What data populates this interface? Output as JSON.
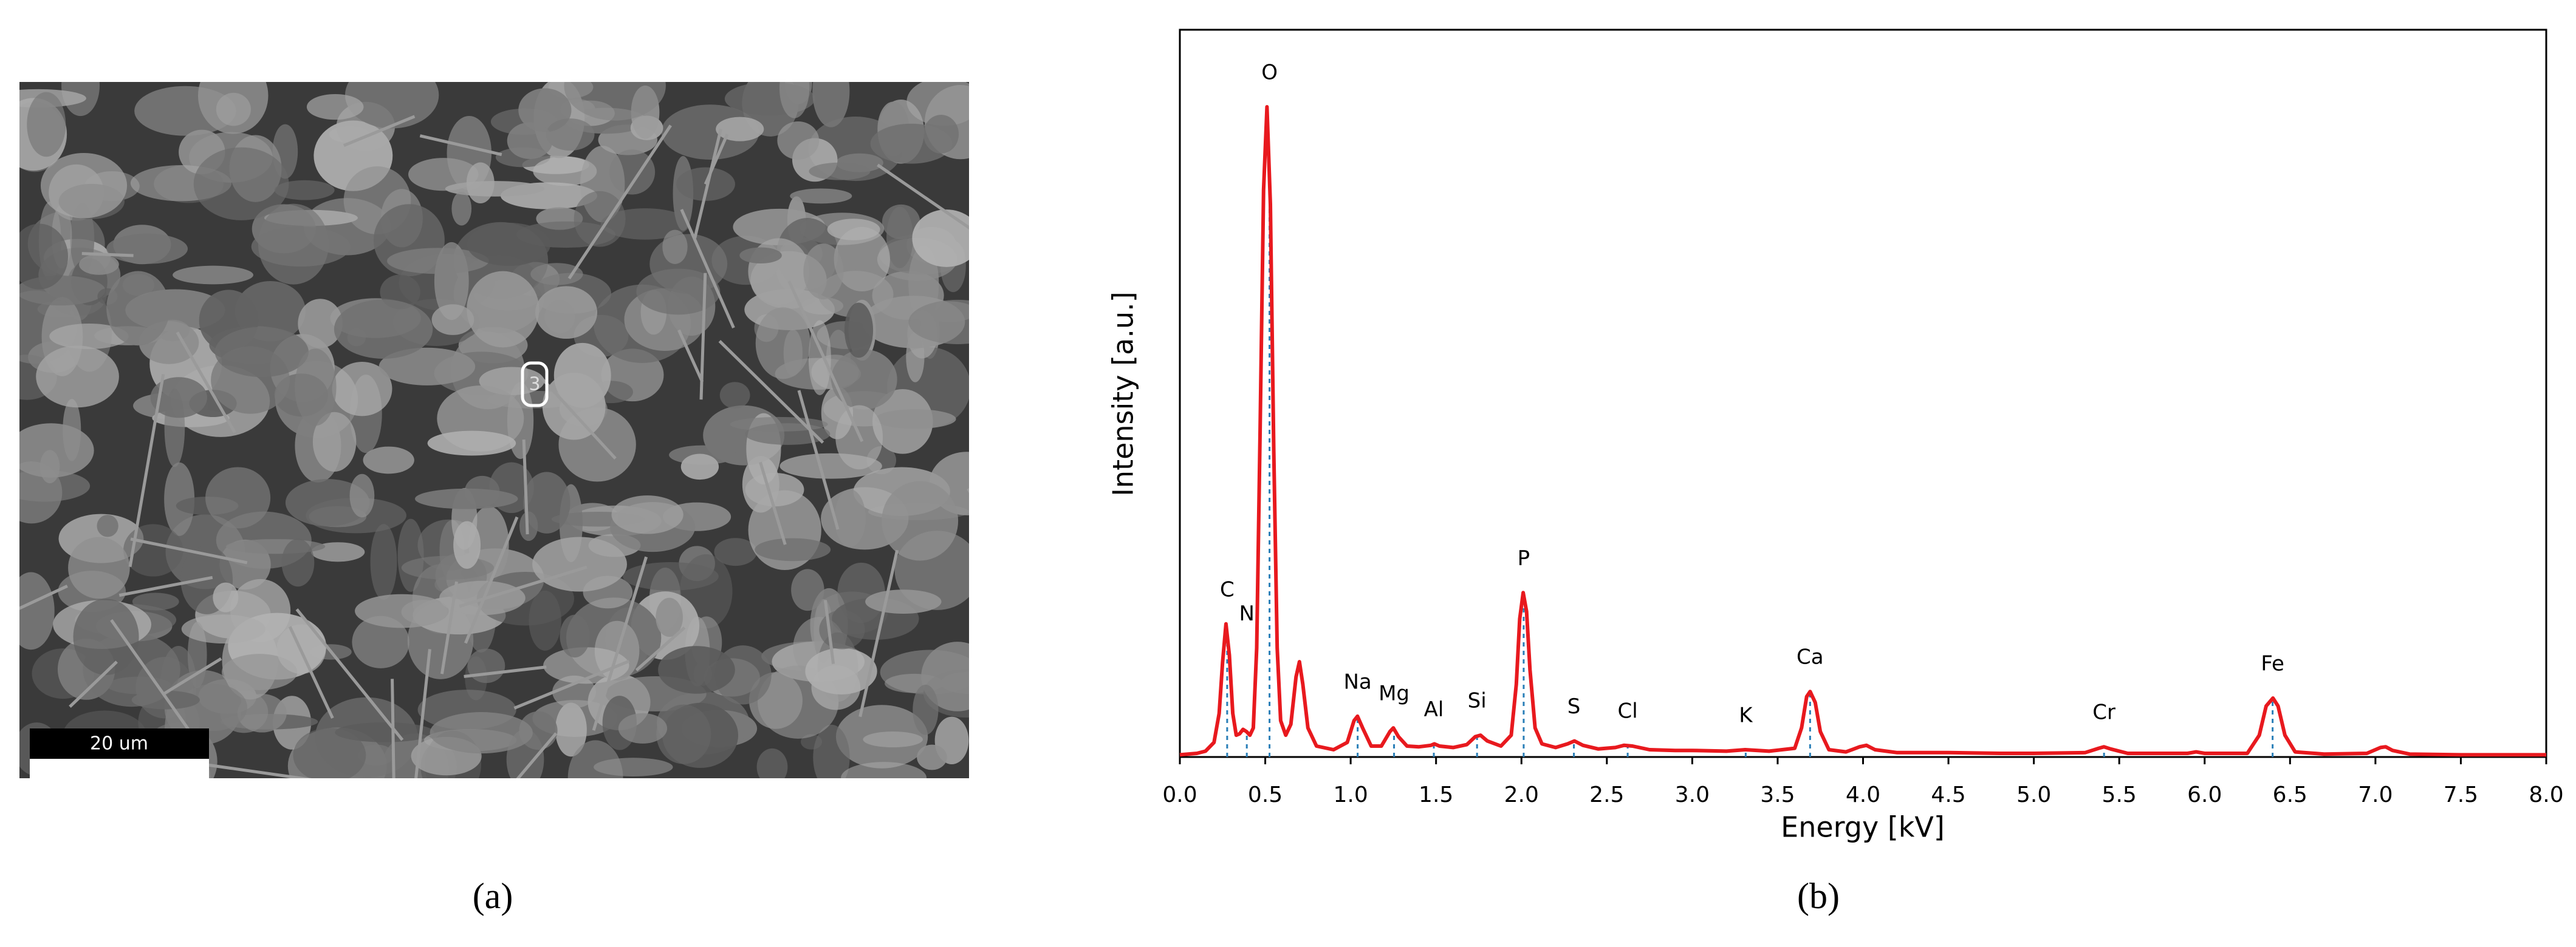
{
  "image": {
    "scale_bar": "20 um",
    "marker": "3",
    "caption": "(a)"
  },
  "chart_data": {
    "type": "line",
    "caption": "(b)",
    "x_label": "Energy [kV]",
    "y_label": "Intensity [a.u.]",
    "color": "#e8191e",
    "peak_line_color": "#2a7fb8",
    "x": [
      0,
      0.1,
      0.15,
      0.2,
      0.23,
      0.25,
      0.27,
      0.29,
      0.31,
      0.33,
      0.35,
      0.37,
      0.39,
      0.41,
      0.43,
      0.45,
      0.47,
      0.49,
      0.51,
      0.53,
      0.55,
      0.57,
      0.59,
      0.62,
      0.65,
      0.68,
      0.7,
      0.72,
      0.75,
      0.8,
      0.9,
      0.98,
      1.02,
      1.04,
      1.07,
      1.12,
      1.18,
      1.23,
      1.25,
      1.28,
      1.33,
      1.4,
      1.47,
      1.49,
      1.52,
      1.6,
      1.68,
      1.73,
      1.76,
      1.8,
      1.88,
      1.94,
      1.97,
      1.99,
      2.01,
      2.03,
      2.05,
      2.08,
      2.12,
      2.2,
      2.27,
      2.31,
      2.36,
      2.45,
      2.55,
      2.6,
      2.65,
      2.75,
      2.9,
      3.0,
      3.2,
      3.31,
      3.45,
      3.6,
      3.64,
      3.67,
      3.69,
      3.72,
      3.75,
      3.8,
      3.9,
      3.98,
      4.02,
      4.07,
      4.2,
      4.5,
      4.8,
      5.0,
      5.3,
      5.38,
      5.41,
      5.45,
      5.55,
      5.9,
      5.95,
      6.0,
      6.25,
      6.32,
      6.36,
      6.4,
      6.43,
      6.47,
      6.53,
      6.7,
      6.95,
      7.03,
      7.06,
      7.1,
      7.2,
      7.5,
      8.0
    ],
    "values": [
      0.3,
      0.5,
      0.8,
      2,
      6,
      13,
      18.3,
      14,
      6,
      3,
      3.2,
      3.8,
      3.5,
      3,
      4,
      15,
      45,
      78,
      89.4,
      76,
      42,
      15,
      5,
      3,
      4.5,
      11,
      13.1,
      10,
      4,
      1.5,
      1,
      2,
      5,
      5.6,
      4,
      1.5,
      1.5,
      3.5,
      4,
      2.8,
      1.5,
      1.4,
      1.6,
      1.8,
      1.5,
      1.3,
      1.7,
      2.8,
      3,
      2.2,
      1.5,
      3,
      10,
      19,
      22.6,
      20,
      12,
      4,
      1.8,
      1.3,
      1.8,
      2.2,
      1.6,
      1.1,
      1.3,
      1.6,
      1.5,
      1,
      0.9,
      0.9,
      0.8,
      1,
      0.8,
      1.2,
      4,
      8.3,
      9,
      7.5,
      3.5,
      1,
      0.7,
      1.4,
      1.6,
      1,
      0.6,
      0.6,
      0.5,
      0.5,
      0.6,
      1.2,
      1.4,
      1.1,
      0.5,
      0.5,
      0.7,
      0.5,
      0.5,
      3,
      7,
      8.1,
      7,
      3,
      0.7,
      0.4,
      0.5,
      1.3,
      1.4,
      0.9,
      0.4,
      0.3,
      0.3
    ],
    "peaks": [
      {
        "label": "C",
        "energy": 0.277
      },
      {
        "label": "N",
        "energy": 0.392
      },
      {
        "label": "O",
        "energy": 0.525
      },
      {
        "label": "Na",
        "energy": 1.041
      },
      {
        "label": "Mg",
        "energy": 1.254
      },
      {
        "label": "Al",
        "energy": 1.487
      },
      {
        "label": "Si",
        "energy": 1.74
      },
      {
        "label": "P",
        "energy": 2.013
      },
      {
        "label": "S",
        "energy": 2.307
      },
      {
        "label": "Cl",
        "energy": 2.622
      },
      {
        "label": "K",
        "energy": 3.313
      },
      {
        "label": "Ca",
        "energy": 3.69
      },
      {
        "label": "Cr",
        "energy": 5.411
      },
      {
        "label": "Fe",
        "energy": 6.398
      }
    ],
    "xlim": [
      0,
      8
    ],
    "ylim": [
      0,
      100
    ],
    "xticks": [
      {
        "value": 0,
        "label": "0.0"
      },
      0.5,
      {
        "value": 1,
        "label": "1.0"
      },
      1.5,
      {
        "value": 2,
        "label": "2.0"
      },
      2.5,
      {
        "value": 3,
        "label": "3.0"
      },
      3.5,
      {
        "value": 4,
        "label": "4.0"
      },
      4.5,
      {
        "value": 5,
        "label": "5.0"
      },
      5.5,
      {
        "value": 6,
        "label": "6.0"
      },
      6.5,
      {
        "value": 7,
        "label": "7.0"
      },
      7.5,
      {
        "value": 8,
        "label": "8.0"
      }
    ]
  }
}
